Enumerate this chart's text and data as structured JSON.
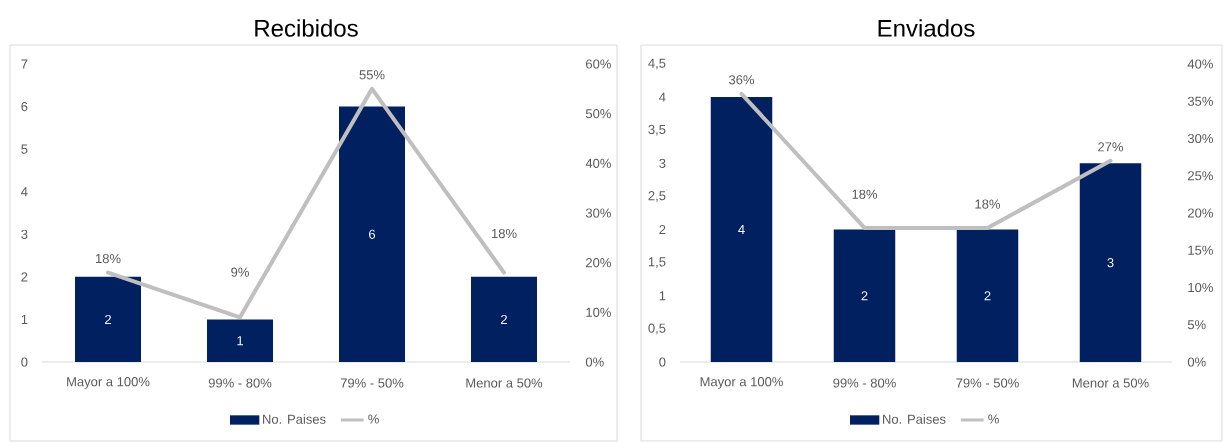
{
  "chart_data": [
    {
      "type": "bar",
      "title": "Recibidos",
      "categories": [
        "Mayor a 100%",
        "99% - 80%",
        "79% - 50%",
        "Menor a 50%"
      ],
      "series": [
        {
          "name": "No. Paises",
          "color": "#002060",
          "values": [
            2,
            1,
            6,
            2
          ],
          "value_labels": [
            "2",
            "1",
            "6",
            "2"
          ]
        },
        {
          "name": "%",
          "type": "line",
          "axis": "y2",
          "color": "#BFBFBF",
          "values": [
            18,
            9,
            55,
            18
          ],
          "value_labels": [
            "18%",
            "9%",
            "55%",
            "18%"
          ]
        }
      ],
      "ylim": [
        0,
        7
      ],
      "yticks": [
        0,
        1,
        2,
        3,
        4,
        5,
        6,
        7
      ],
      "y2lim": [
        0,
        60
      ],
      "y2ticks": [
        {
          "value": 0,
          "label": "0%"
        },
        {
          "value": 10,
          "label": "10%"
        },
        {
          "value": 20,
          "label": "20%"
        },
        {
          "value": 30,
          "label": "30%"
        },
        {
          "value": 40,
          "label": "40%"
        },
        {
          "value": 50,
          "label": "50%"
        },
        {
          "value": 60,
          "label": "60%"
        }
      ],
      "legend": "bottom"
    },
    {
      "type": "bar",
      "title": "Enviados",
      "categories": [
        "Mayor a 100%",
        "99% - 80%",
        "79% - 50%",
        "Menor a 50%"
      ],
      "series": [
        {
          "name": "No. Paises",
          "color": "#002060",
          "values": [
            4,
            2,
            2,
            3
          ],
          "value_labels": [
            "4",
            "2",
            "2",
            "3"
          ]
        },
        {
          "name": "%",
          "type": "line",
          "axis": "y2",
          "color": "#BFBFBF",
          "values": [
            36,
            18,
            18,
            27
          ],
          "value_labels": [
            "36%",
            "18%",
            "18%",
            "27%"
          ]
        }
      ],
      "ylim": [
        0,
        4.5
      ],
      "yticks": [
        0,
        {
          "value": 0.5,
          "label": "0,5"
        },
        1,
        {
          "value": 1.5,
          "label": "1,5"
        },
        2,
        {
          "value": 2.5,
          "label": "2,5"
        },
        3,
        {
          "value": 3.5,
          "label": "3,5"
        },
        4,
        {
          "value": 4.5,
          "label": "4,5"
        }
      ],
      "y2lim": [
        0,
        40
      ],
      "y2ticks": [
        {
          "value": 0,
          "label": "0%"
        },
        {
          "value": 5,
          "label": "5%"
        },
        {
          "value": 10,
          "label": "10%"
        },
        {
          "value": 15,
          "label": "15%"
        },
        {
          "value": 20,
          "label": "20%"
        },
        {
          "value": 25,
          "label": "25%"
        },
        {
          "value": 30,
          "label": "30%"
        },
        {
          "value": 35,
          "label": "35%"
        },
        {
          "value": 40,
          "label": "40%"
        }
      ],
      "legend": "bottom"
    }
  ]
}
